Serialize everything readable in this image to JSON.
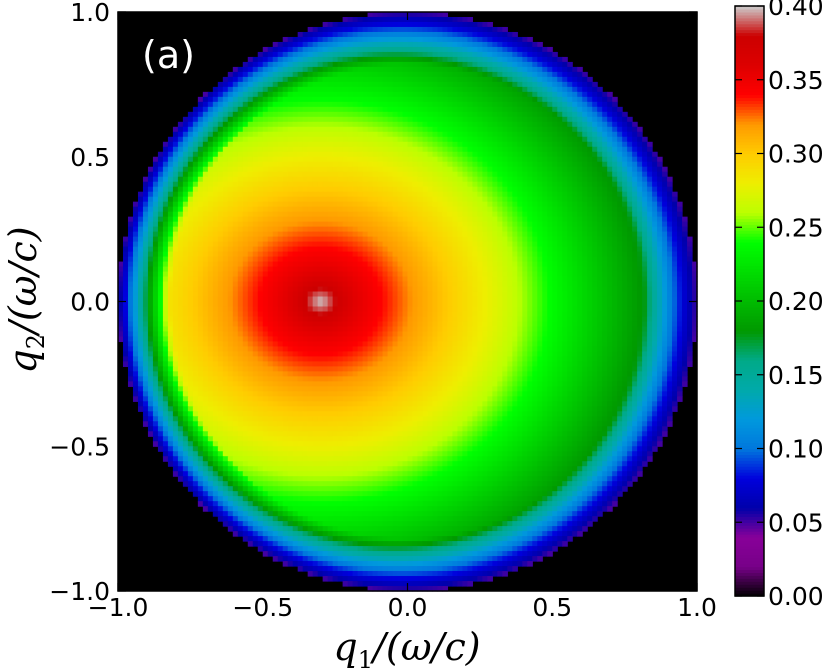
{
  "chart_data": {
    "type": "heatmap",
    "panel_label": "(a)",
    "xlabel": "q₁/(ω/c)",
    "ylabel": "q₂/(ω/c)",
    "xlim": [
      -1.0,
      1.0
    ],
    "ylim": [
      -1.0,
      1.0
    ],
    "x_ticks": [
      -1.0,
      -0.5,
      0.0,
      0.5,
      1.0
    ],
    "y_ticks": [
      -1.0,
      -0.5,
      0.0,
      0.5,
      1.0
    ],
    "x_tick_labels": [
      "−1.0",
      "−0.5",
      "0.0",
      "0.5",
      "1.0"
    ],
    "y_tick_labels": [
      "−1.0",
      "−0.5",
      "0.0",
      "0.5",
      "1.0"
    ],
    "colorbar": {
      "range": [
        0.0,
        0.4
      ],
      "ticks": [
        0.0,
        0.05,
        0.1,
        0.15,
        0.2,
        0.25,
        0.3,
        0.35,
        0.4
      ],
      "tick_labels": [
        "0.00",
        "0.05",
        "0.10",
        "0.15",
        "0.20",
        "0.25",
        "0.30",
        "0.35",
        "0.40"
      ],
      "colormap": "nipy_spectral"
    },
    "support": "disk of radius 1.0 centred at (0, 0); value 0 outside",
    "peak": {
      "x": -0.3,
      "y": 0.0,
      "value": 0.4
    },
    "radial_profile_samples": [
      {
        "r_from_peak": 0.0,
        "value": 0.4
      },
      {
        "r_from_peak": 0.1,
        "value": 0.36
      },
      {
        "r_from_peak": 0.3,
        "value": 0.32
      },
      {
        "r_from_peak": 0.6,
        "value": 0.27
      },
      {
        "r_from_peak": 0.9,
        "value": 0.21
      },
      {
        "r_from_peak": 1.2,
        "value": 0.15
      }
    ],
    "edge_value": 0.05
  }
}
